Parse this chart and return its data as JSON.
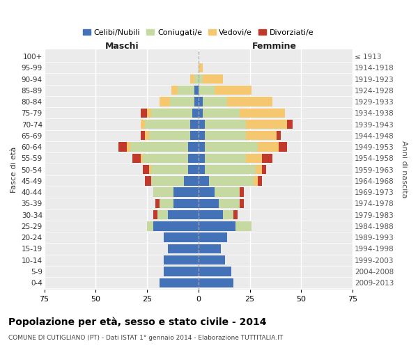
{
  "age_groups": [
    "0-4",
    "5-9",
    "10-14",
    "15-19",
    "20-24",
    "25-29",
    "30-34",
    "35-39",
    "40-44",
    "45-49",
    "50-54",
    "55-59",
    "60-64",
    "65-69",
    "70-74",
    "75-79",
    "80-84",
    "85-89",
    "90-94",
    "95-99",
    "100+"
  ],
  "birth_years": [
    "2009-2013",
    "2004-2008",
    "1999-2003",
    "1994-1998",
    "1989-1993",
    "1984-1988",
    "1979-1983",
    "1974-1978",
    "1969-1973",
    "1964-1968",
    "1959-1963",
    "1954-1958",
    "1949-1953",
    "1944-1948",
    "1939-1943",
    "1934-1938",
    "1929-1933",
    "1924-1928",
    "1919-1923",
    "1914-1918",
    "≤ 1913"
  ],
  "maschi": {
    "celibi": [
      19,
      17,
      17,
      15,
      17,
      22,
      15,
      12,
      12,
      7,
      5,
      5,
      5,
      4,
      4,
      3,
      2,
      2,
      0,
      0,
      0
    ],
    "coniugati": [
      0,
      0,
      0,
      0,
      0,
      3,
      5,
      7,
      10,
      16,
      18,
      22,
      28,
      20,
      22,
      20,
      12,
      8,
      2,
      0,
      0
    ],
    "vedovi": [
      0,
      0,
      0,
      0,
      0,
      0,
      0,
      0,
      0,
      0,
      1,
      1,
      2,
      2,
      2,
      2,
      5,
      3,
      2,
      0,
      0
    ],
    "divorziati": [
      0,
      0,
      0,
      0,
      0,
      0,
      2,
      2,
      0,
      3,
      3,
      4,
      4,
      2,
      0,
      3,
      0,
      0,
      0,
      0,
      0
    ]
  },
  "femmine": {
    "nubili": [
      17,
      16,
      13,
      11,
      14,
      18,
      12,
      10,
      8,
      5,
      3,
      3,
      3,
      3,
      3,
      2,
      2,
      0,
      0,
      0,
      0
    ],
    "coniugate": [
      0,
      0,
      0,
      0,
      0,
      8,
      5,
      10,
      12,
      22,
      25,
      20,
      26,
      20,
      20,
      18,
      12,
      8,
      2,
      0,
      0
    ],
    "vedove": [
      0,
      0,
      0,
      0,
      0,
      0,
      0,
      0,
      0,
      2,
      3,
      8,
      10,
      15,
      20,
      22,
      22,
      18,
      10,
      2,
      0
    ],
    "divorziate": [
      0,
      0,
      0,
      0,
      0,
      0,
      2,
      2,
      2,
      2,
      2,
      5,
      4,
      2,
      3,
      0,
      0,
      0,
      0,
      0,
      0
    ]
  },
  "colors": {
    "celibi": "#4472b8",
    "coniugati": "#c5d9a0",
    "vedovi": "#f5c76e",
    "divorziati": "#c0392b"
  },
  "xlim": 75,
  "title": "Popolazione per età, sesso e stato civile - 2014",
  "subtitle": "COMUNE DI CUTIGLIANO (PT) - Dati ISTAT 1° gennaio 2014 - Elaborazione TUTTITALIA.IT",
  "ylabel": "Fasce di età",
  "ylabel_right": "Anni di nascita",
  "legend_labels": [
    "Celibi/Nubili",
    "Coniugati/e",
    "Vedovi/e",
    "Divorziati/e"
  ]
}
